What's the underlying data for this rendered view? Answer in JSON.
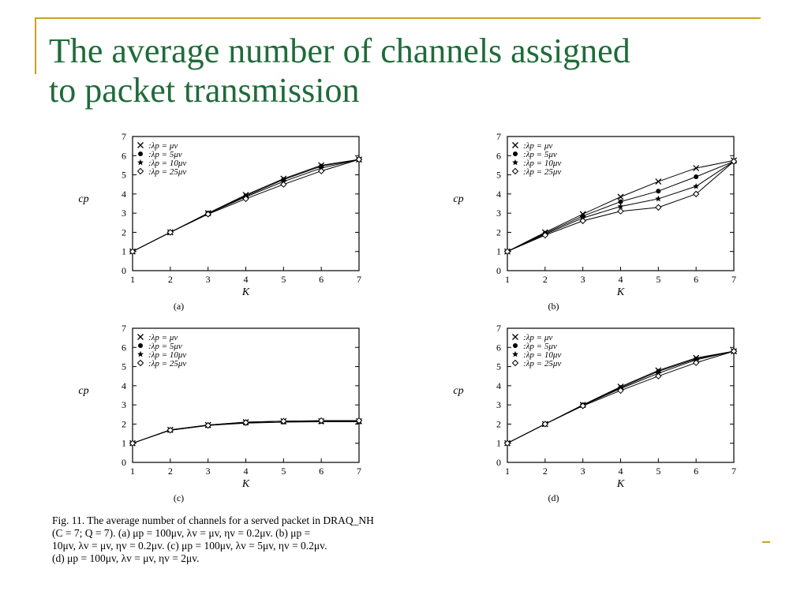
{
  "slide": {
    "title_lines": [
      "The average number of channels assigned",
      "to packet transmission"
    ]
  },
  "caption": {
    "lines": [
      "Fig. 11.    The average number of channels for a served packet in DRAQ_NH",
      "(C = 7; Q = 7). (a) μp = 100μv, λv = μv, ηv = 0.2μv. (b) μp =",
      "10μv, λv = μv, ηv = 0.2μv. (c) μp = 100μv, λv = 5μv, ηv = 0.2μv.",
      "(d) μp = 100μv, λv = μv, ηv = 2μv."
    ]
  },
  "colors": {
    "title": "#1f6b3a",
    "accent_line": "#c9a227",
    "ink": "#000000"
  },
  "chart_data": [
    {
      "type": "line",
      "panel_label": "(a)",
      "xlabel": "K",
      "ylabel": "cp",
      "x": [
        1,
        2,
        3,
        4,
        5,
        6,
        7
      ],
      "xlim": [
        1,
        7
      ],
      "ylim": [
        0,
        7
      ],
      "yticks": [
        0,
        1,
        2,
        3,
        4,
        5,
        6,
        7
      ],
      "legend_position": "top-left",
      "series": [
        {
          "name": "× :λp = μv",
          "marker": "x",
          "values": [
            1,
            2,
            3,
            3.95,
            4.8,
            5.5,
            5.8
          ]
        },
        {
          "name": "● :λp = 5μv",
          "marker": "dot",
          "values": [
            1,
            2,
            3,
            3.9,
            4.75,
            5.45,
            5.8
          ]
        },
        {
          "name": "★ :λp = 10μv",
          "marker": "star",
          "values": [
            1,
            2,
            2.98,
            3.85,
            4.65,
            5.35,
            5.8
          ]
        },
        {
          "name": "◇ :λp = 25μv",
          "marker": "diamond",
          "values": [
            1,
            2,
            2.95,
            3.75,
            4.5,
            5.2,
            5.8
          ]
        }
      ]
    },
    {
      "type": "line",
      "panel_label": "(b)",
      "xlabel": "K",
      "ylabel": "cp",
      "x": [
        1,
        2,
        3,
        4,
        5,
        6,
        7
      ],
      "xlim": [
        1,
        7
      ],
      "ylim": [
        0,
        7
      ],
      "yticks": [
        0,
        1,
        2,
        3,
        4,
        5,
        6,
        7
      ],
      "legend_position": "top-left",
      "series": [
        {
          "name": "× :λp = μv",
          "marker": "x",
          "values": [
            1,
            2,
            2.95,
            3.85,
            4.65,
            5.35,
            5.75
          ]
        },
        {
          "name": "● :λp = 5μv",
          "marker": "dot",
          "values": [
            1,
            1.95,
            2.85,
            3.6,
            4.15,
            4.9,
            5.7
          ]
        },
        {
          "name": "★ :λp = 10μv",
          "marker": "star",
          "values": [
            1,
            1.9,
            2.75,
            3.35,
            3.75,
            4.4,
            5.7
          ]
        },
        {
          "name": "◇ :λp = 25μv",
          "marker": "diamond",
          "values": [
            1,
            1.85,
            2.6,
            3.1,
            3.3,
            4.0,
            5.7
          ]
        }
      ]
    },
    {
      "type": "line",
      "panel_label": "(c)",
      "xlabel": "K",
      "ylabel": "cp",
      "x": [
        1,
        2,
        3,
        4,
        5,
        6,
        7
      ],
      "xlim": [
        1,
        7
      ],
      "ylim": [
        0,
        7
      ],
      "yticks": [
        0,
        1,
        2,
        3,
        4,
        5,
        6,
        7
      ],
      "legend_position": "top-left",
      "series": [
        {
          "name": "× :λp = μv",
          "marker": "x",
          "values": [
            1,
            1.7,
            1.95,
            2.1,
            2.15,
            2.15,
            2.15
          ]
        },
        {
          "name": "● :λp = 5μv",
          "marker": "dot",
          "values": [
            1,
            1.7,
            1.95,
            2.1,
            2.15,
            2.15,
            2.15
          ]
        },
        {
          "name": "★ :λp = 10μv",
          "marker": "star",
          "values": [
            1,
            1.68,
            1.93,
            2.05,
            2.1,
            2.12,
            2.12
          ]
        },
        {
          "name": "◇ :λp = 25μv",
          "marker": "diamond",
          "values": [
            1,
            1.68,
            1.93,
            2.08,
            2.15,
            2.18,
            2.18
          ]
        }
      ]
    },
    {
      "type": "line",
      "panel_label": "(d)",
      "xlabel": "K",
      "ylabel": "cp",
      "x": [
        1,
        2,
        3,
        4,
        5,
        6,
        7
      ],
      "xlim": [
        1,
        7
      ],
      "ylim": [
        0,
        7
      ],
      "yticks": [
        0,
        1,
        2,
        3,
        4,
        5,
        6,
        7
      ],
      "legend_position": "top-left",
      "series": [
        {
          "name": "× :λp = μv",
          "marker": "x",
          "values": [
            1,
            2,
            3,
            3.95,
            4.8,
            5.45,
            5.8
          ]
        },
        {
          "name": "● :λp = 5μv",
          "marker": "dot",
          "values": [
            1,
            2,
            3,
            3.9,
            4.75,
            5.4,
            5.8
          ]
        },
        {
          "name": "★ :λp = 10μv",
          "marker": "star",
          "values": [
            1,
            2,
            2.98,
            3.85,
            4.65,
            5.35,
            5.8
          ]
        },
        {
          "name": "◇ :λp = 25μv",
          "marker": "diamond",
          "values": [
            1,
            2,
            2.95,
            3.75,
            4.5,
            5.2,
            5.8
          ]
        }
      ]
    }
  ]
}
